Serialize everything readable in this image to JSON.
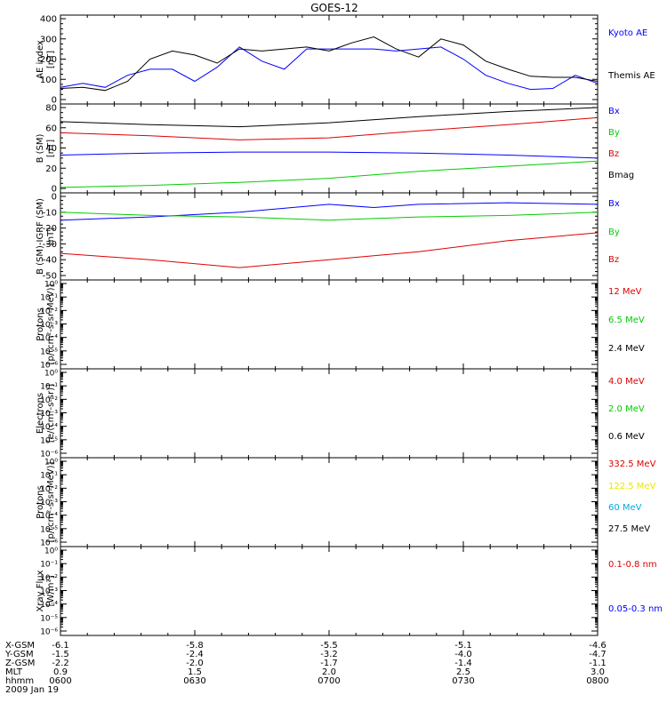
{
  "title": "GOES-12",
  "chart_data": [
    {
      "type": "line",
      "panel": "ae",
      "ylabel": [
        "AE index",
        "[nT]"
      ],
      "ylim": [
        0,
        400
      ],
      "yticks": [
        0,
        100,
        200,
        300,
        400
      ],
      "xlim": [
        0,
        120
      ],
      "series": [
        {
          "name": "Kyoto AE",
          "color": "#0000ff",
          "x": [
            0,
            5,
            10,
            15,
            20,
            25,
            30,
            35,
            40,
            45,
            50,
            55,
            60,
            65,
            70,
            75,
            80,
            85,
            90,
            95,
            100,
            105,
            110,
            115,
            120
          ],
          "y": [
            60,
            80,
            60,
            120,
            150,
            150,
            90,
            160,
            260,
            190,
            150,
            250,
            250,
            250,
            250,
            240,
            250,
            260,
            200,
            120,
            80,
            50,
            55,
            120,
            80
          ]
        },
        {
          "name": "Themis AE",
          "color": "#000000",
          "x": [
            0,
            5,
            10,
            15,
            20,
            25,
            30,
            35,
            40,
            45,
            50,
            55,
            60,
            65,
            70,
            75,
            80,
            85,
            90,
            95,
            100,
            105,
            110,
            115,
            120
          ],
          "y": [
            55,
            60,
            45,
            90,
            200,
            240,
            220,
            180,
            250,
            240,
            250,
            260,
            240,
            280,
            310,
            250,
            210,
            300,
            270,
            190,
            150,
            115,
            110,
            110,
            90
          ]
        }
      ]
    },
    {
      "type": "line",
      "panel": "b_sm",
      "ylabel": [
        "B (SM)",
        "[nT]"
      ],
      "ylim": [
        0,
        80
      ],
      "yticks": [
        0,
        20,
        40,
        60,
        80
      ],
      "xlim": [
        0,
        120
      ],
      "series": [
        {
          "name": "Bx",
          "color": "#0000ff",
          "x": [
            0,
            20,
            40,
            60,
            80,
            100,
            120
          ],
          "y": [
            33,
            35,
            36,
            36,
            35,
            33,
            30
          ]
        },
        {
          "name": "By",
          "color": "#00cc00",
          "x": [
            0,
            20,
            40,
            60,
            80,
            100,
            120
          ],
          "y": [
            1,
            3,
            6,
            10,
            17,
            22,
            27
          ]
        },
        {
          "name": "Bz",
          "color": "#dd0000",
          "x": [
            0,
            20,
            40,
            60,
            80,
            100,
            120
          ],
          "y": [
            55,
            52,
            48,
            50,
            57,
            63,
            70
          ]
        },
        {
          "name": "Bmag",
          "color": "#000000",
          "x": [
            0,
            20,
            40,
            60,
            80,
            100,
            120
          ],
          "y": [
            66,
            63,
            61,
            65,
            71,
            76,
            80
          ]
        }
      ]
    },
    {
      "type": "line",
      "panel": "b_sm_igrf",
      "ylabel": [
        "B (SM)-IGRF (SM)",
        "[nT]"
      ],
      "ylim": [
        -50,
        0
      ],
      "yticks": [
        -50,
        -40,
        -30,
        -20,
        -10,
        0
      ],
      "xlim": [
        0,
        120
      ],
      "series": [
        {
          "name": "Bx",
          "color": "#0000ff",
          "x": [
            0,
            20,
            40,
            60,
            70,
            80,
            100,
            120
          ],
          "y": [
            -15,
            -13,
            -10,
            -5,
            -7,
            -5,
            -4,
            -5
          ]
        },
        {
          "name": "By",
          "color": "#00cc00",
          "x": [
            0,
            20,
            40,
            60,
            80,
            100,
            120
          ],
          "y": [
            -10,
            -12,
            -13,
            -15,
            -13,
            -12,
            -10
          ]
        },
        {
          "name": "Bz",
          "color": "#dd0000",
          "x": [
            0,
            20,
            40,
            60,
            80,
            100,
            120
          ],
          "y": [
            -36,
            -40,
            -45,
            -40,
            -35,
            -28,
            -23
          ]
        }
      ]
    },
    {
      "type": "line",
      "panel": "protons_hepad",
      "ylabel": [
        "Protons",
        "[p/(cm²-s-sr-MeV)]"
      ],
      "ylog": [
        -6,
        0
      ],
      "yticks": [
        "10⁻⁶",
        "10⁻⁵",
        "10⁻⁴",
        "10⁻³",
        "10⁻²",
        "10⁻¹",
        "10⁰"
      ],
      "series": [
        {
          "name": "12 MeV",
          "color": "#dd0000",
          "values": []
        },
        {
          "name": "6.5 MeV",
          "color": "#00cc00",
          "values": []
        },
        {
          "name": "2.4 MeV",
          "color": "#000000",
          "values": []
        }
      ]
    },
    {
      "type": "line",
      "panel": "electrons",
      "ylabel": [
        "Electrons",
        "[e/(cm²-s-sr)]"
      ],
      "ylog": [
        -6,
        0
      ],
      "yticks": [
        "10⁻⁶",
        "10⁻⁵",
        "10⁻⁴",
        "10⁻³",
        "10⁻²",
        "10⁻¹",
        "10⁰"
      ],
      "series": [
        {
          "name": "4.0 MeV",
          "color": "#dd0000",
          "values": []
        },
        {
          "name": "2.0 MeV",
          "color": "#00cc00",
          "values": []
        },
        {
          "name": "0.6 MeV",
          "color": "#000000",
          "values": []
        }
      ]
    },
    {
      "type": "line",
      "panel": "protons",
      "ylabel": [
        "Protons",
        "[p/(cm²-s-sr-MeV)]"
      ],
      "ylog": [
        -6,
        0
      ],
      "yticks": [
        "10⁻⁶",
        "10⁻⁵",
        "10⁻⁴",
        "10⁻³",
        "10⁻²",
        "10⁻¹",
        "10⁰"
      ],
      "series": [
        {
          "name": "332.5 MeV",
          "color": "#dd0000",
          "values": []
        },
        {
          "name": "122.5 MeV",
          "color": "#e8e800",
          "values": []
        },
        {
          "name": "60 MeV",
          "color": "#00aadd",
          "values": []
        },
        {
          "name": "27.5 MeV",
          "color": "#000000",
          "values": []
        }
      ]
    },
    {
      "type": "line",
      "panel": "xray",
      "ylabel": [
        "Xray Flux",
        "[W/m²]"
      ],
      "ylog": [
        -6,
        0
      ],
      "yticks": [
        "10⁻⁶",
        "10⁻⁵",
        "10⁻⁴",
        "10⁻³",
        "10⁻²",
        "10⁻¹",
        "10⁰"
      ],
      "series": [
        {
          "name": "0.1-0.8 nm",
          "color": "#dd0000",
          "values": []
        },
        {
          "name": "0.05-0.3 nm",
          "color": "#0000ff",
          "values": []
        }
      ]
    }
  ],
  "x_axis": {
    "row_labels": [
      "X-GSM",
      "Y-GSM",
      "Z-GSM",
      "MLT",
      "hhmm"
    ],
    "columns": [
      [
        "-6.1",
        "-1.5",
        "-2.2",
        "0.9",
        "0600"
      ],
      [
        "-5.8",
        "-2.4",
        "-2.0",
        "1.5",
        "0630"
      ],
      [
        "-5.5",
        "-3.2",
        "-1.7",
        "2.0",
        "0700"
      ],
      [
        "-5.1",
        "-4.0",
        "-1.4",
        "2.5",
        "0730"
      ],
      [
        "-4.6",
        "-4.7",
        "-1.1",
        "3.0",
        "0800"
      ]
    ],
    "date": "2009 Jan 19"
  }
}
